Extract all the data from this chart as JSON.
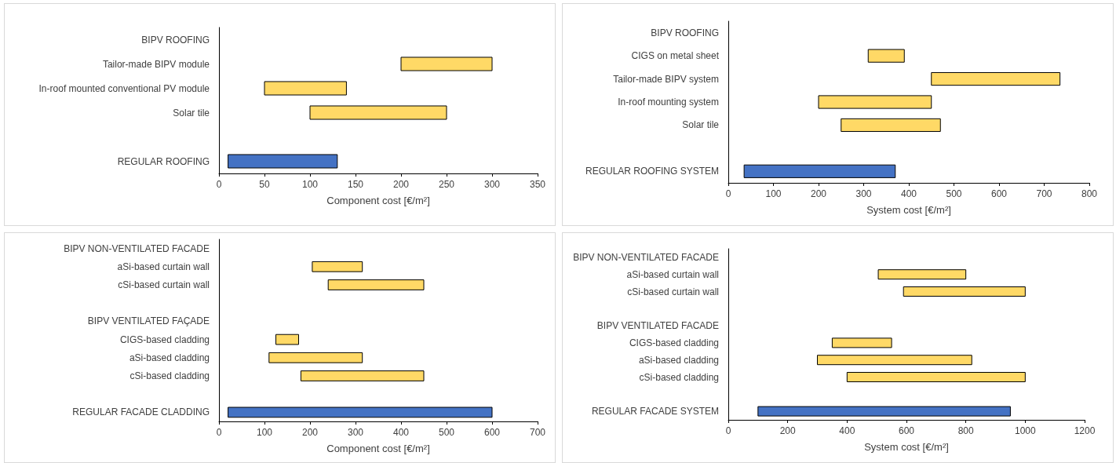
{
  "chart_data": [
    {
      "type": "bar",
      "orientation": "horizontal",
      "xlabel": "Component cost [€/m²]",
      "categories": [
        "BIPV ROOFING",
        "Tailor-made BIPV module",
        "In-roof mounted conventional PV module",
        "Solar tile",
        null,
        "REGULAR ROOFING"
      ],
      "base": [
        null,
        200,
        50,
        100,
        null,
        10
      ],
      "values": [
        null,
        100,
        90,
        150,
        null,
        120
      ],
      "colors": [
        null,
        "#ffd966",
        "#ffd966",
        "#ffd966",
        null,
        "#4472c4"
      ],
      "xlim": [
        0,
        350
      ],
      "xticks": [
        0,
        50,
        100,
        150,
        200,
        250,
        300,
        350
      ],
      "grid": false
    },
    {
      "type": "bar",
      "orientation": "horizontal",
      "xlabel": "System cost [€/m²]",
      "categories": [
        "BIPV ROOFING",
        "CIGS on metal sheet",
        "Tailor-made BIPV system",
        "In-roof mounting system",
        "Solar tile",
        null,
        "REGULAR ROOFING SYSTEM"
      ],
      "base": [
        null,
        310,
        450,
        200,
        250,
        null,
        35
      ],
      "values": [
        null,
        80,
        285,
        250,
        220,
        null,
        335
      ],
      "colors": [
        null,
        "#ffd966",
        "#ffd966",
        "#ffd966",
        "#ffd966",
        null,
        "#4472c4"
      ],
      "xlim": [
        0,
        800
      ],
      "xticks": [
        0,
        100,
        200,
        300,
        400,
        500,
        600,
        700,
        800
      ],
      "grid": false
    },
    {
      "type": "bar",
      "orientation": "horizontal",
      "xlabel": "Component cost [€/m²]",
      "categories": [
        "BIPV NON-VENTILATED FACADE",
        "aSi-based curtain wall",
        "cSi-based curtain wall",
        null,
        "BIPV VENTILATED FAÇADE",
        "CIGS-based cladding",
        "aSi-based cladding",
        "cSi-based cladding",
        null,
        "REGULAR FACADE CLADDING"
      ],
      "base": [
        null,
        205,
        240,
        null,
        null,
        125,
        110,
        180,
        null,
        20
      ],
      "values": [
        null,
        110,
        210,
        null,
        null,
        50,
        205,
        270,
        null,
        580
      ],
      "colors": [
        null,
        "#ffd966",
        "#ffd966",
        null,
        null,
        "#ffd966",
        "#ffd966",
        "#ffd966",
        null,
        "#4472c4"
      ],
      "xlim": [
        0,
        700
      ],
      "xticks": [
        0,
        100,
        200,
        300,
        400,
        500,
        600,
        700
      ],
      "grid": false
    },
    {
      "type": "bar",
      "orientation": "horizontal",
      "xlabel": "System cost [€/m²]",
      "categories": [
        "BIPV NON-VENTILATED FACADE",
        "aSi-based curtain wall",
        "cSi-based curtain wall",
        null,
        "BIPV VENTILATED FACADE",
        "CIGS-based cladding",
        "aSi-based cladding",
        "cSi-based cladding",
        null,
        "REGULAR FACADE SYSTEM"
      ],
      "base": [
        null,
        505,
        590,
        null,
        null,
        350,
        300,
        400,
        null,
        100
      ],
      "values": [
        null,
        295,
        410,
        null,
        null,
        200,
        520,
        600,
        null,
        850
      ],
      "colors": [
        null,
        "#ffd966",
        "#ffd966",
        null,
        null,
        "#ffd966",
        "#ffd966",
        "#ffd966",
        null,
        "#4472c4"
      ],
      "xlim": [
        0,
        1200
      ],
      "xticks": [
        0,
        200,
        400,
        600,
        800,
        1000,
        1200
      ],
      "grid": false
    }
  ]
}
